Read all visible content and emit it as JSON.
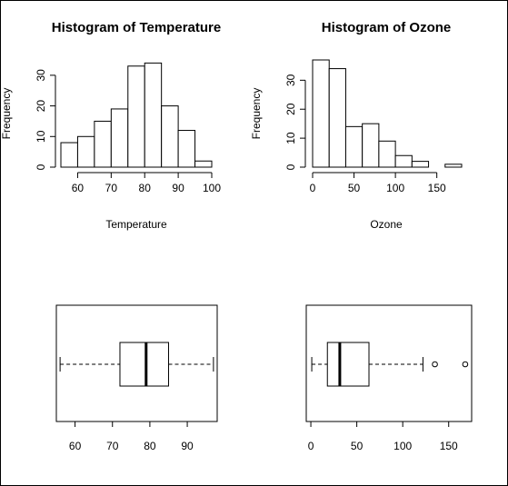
{
  "chart_data": [
    {
      "type": "histogram",
      "title": "Histogram of Temperature",
      "xlabel": "Temperature",
      "ylabel": "Frequency",
      "bins": [
        [
          55,
          60
        ],
        [
          60,
          65
        ],
        [
          65,
          70
        ],
        [
          70,
          75
        ],
        [
          75,
          80
        ],
        [
          80,
          85
        ],
        [
          85,
          90
        ],
        [
          90,
          95
        ],
        [
          95,
          100
        ]
      ],
      "values": [
        8,
        10,
        15,
        19,
        33,
        34,
        20,
        12,
        2
      ],
      "xticks": [
        "60",
        "70",
        "80",
        "90",
        "100"
      ],
      "yticks": [
        "0",
        "10",
        "20",
        "30"
      ],
      "xlim": [
        55,
        100
      ],
      "ylim": [
        0,
        35
      ]
    },
    {
      "type": "histogram",
      "title": "Histogram of Ozone",
      "xlabel": "Ozone",
      "ylabel": "Frequency",
      "bins": [
        [
          0,
          20
        ],
        [
          20,
          40
        ],
        [
          40,
          60
        ],
        [
          60,
          80
        ],
        [
          80,
          100
        ],
        [
          100,
          120
        ],
        [
          120,
          140
        ],
        [
          140,
          160
        ],
        [
          160,
          180
        ]
      ],
      "values": [
        37,
        34,
        14,
        15,
        9,
        4,
        2,
        0,
        1
      ],
      "xticks": [
        "0",
        "50",
        "100",
        "150"
      ],
      "yticks": [
        "0",
        "10",
        "20",
        "30"
      ],
      "xlim": [
        0,
        180
      ],
      "ylim": [
        0,
        37
      ]
    },
    {
      "type": "boxplot",
      "orientation": "horizontal",
      "min": 56,
      "q1": 72,
      "median": 79,
      "q3": 85,
      "max": 97,
      "outliers": [],
      "xticks": [
        "60",
        "70",
        "80",
        "90"
      ],
      "xlim": [
        55,
        98
      ]
    },
    {
      "type": "boxplot",
      "orientation": "horizontal",
      "min": 1,
      "q1": 18,
      "median": 31.5,
      "q3": 63.25,
      "max": 122,
      "outliers": [
        135,
        168
      ],
      "xticks": [
        "0",
        "50",
        "100",
        "150"
      ],
      "xlim": [
        -5,
        175
      ]
    }
  ]
}
